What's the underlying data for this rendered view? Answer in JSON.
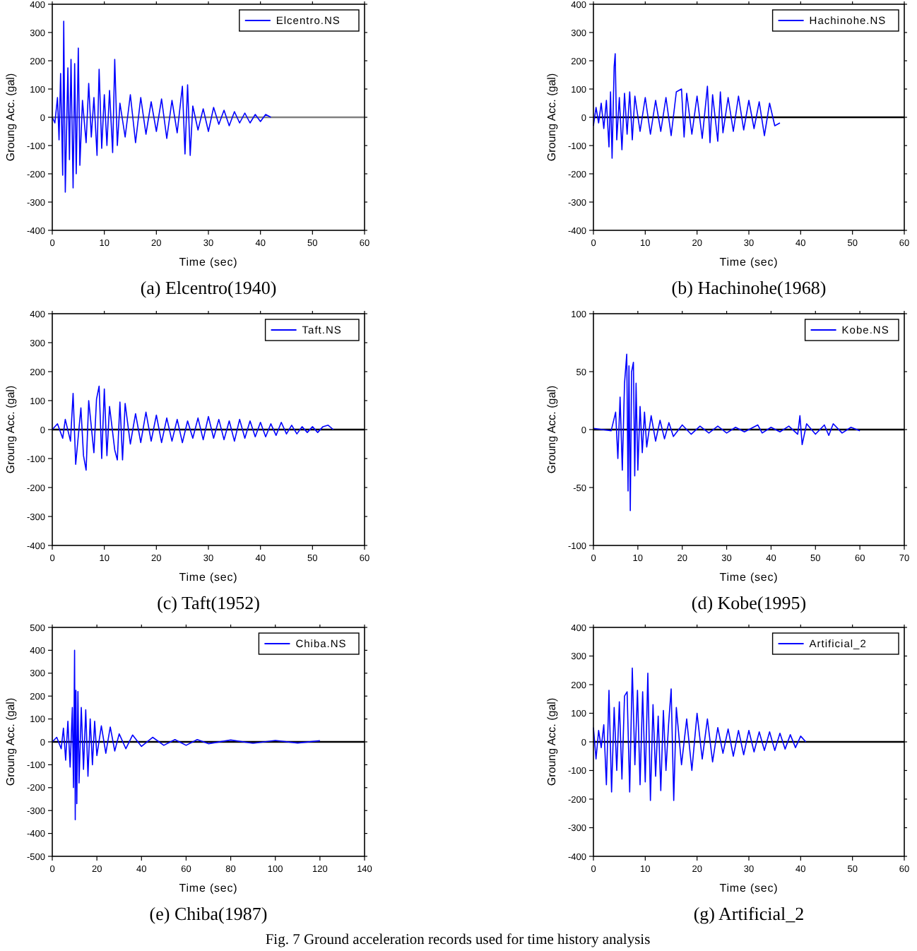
{
  "chart_data": [
    {
      "type": "line",
      "title": "(a) Elcentro(1940)",
      "xlabel": "Time (sec)",
      "ylabel": "Groung Acc. (gal)",
      "legend": "top right",
      "xlim": [
        0,
        60
      ],
      "xticks": [
        0,
        10,
        20,
        30,
        40,
        50,
        60
      ],
      "ylim": [
        -400,
        400
      ],
      "yticks": [
        -400,
        -300,
        -200,
        -100,
        0,
        100,
        200,
        300,
        400
      ],
      "ref_lines": [
        {
          "axis": "y",
          "value": 0,
          "color": "#808080"
        }
      ],
      "series": [
        {
          "name": "Elcentro.NS",
          "color": "#0000ff",
          "x": [
            0,
            0.5,
            1,
            1.3,
            1.6,
            2.0,
            2.2,
            2.5,
            3.0,
            3.3,
            3.6,
            4.0,
            4.3,
            4.6,
            5.0,
            5.3,
            5.8,
            6.5,
            7.0,
            7.5,
            8.0,
            8.6,
            9.0,
            9.5,
            10,
            10.5,
            11,
            11.6,
            12,
            12.5,
            13,
            14,
            15,
            16,
            17,
            18,
            19,
            20,
            21,
            22,
            23,
            24,
            25,
            25.5,
            26,
            26.5,
            27,
            28,
            29,
            30,
            31,
            32,
            33,
            34,
            35,
            36,
            37,
            38,
            39,
            40,
            41,
            42
          ],
          "values": [
            0,
            -20,
            70,
            -80,
            155,
            -205,
            340,
            -265,
            175,
            -150,
            205,
            -250,
            190,
            -200,
            245,
            -170,
            60,
            -90,
            120,
            -70,
            70,
            -135,
            170,
            -110,
            80,
            -100,
            95,
            -125,
            205,
            -100,
            50,
            -70,
            80,
            -90,
            70,
            -60,
            55,
            -50,
            65,
            -75,
            60,
            -55,
            110,
            -130,
            115,
            -135,
            40,
            -45,
            30,
            -50,
            35,
            -25,
            25,
            -30,
            20,
            -20,
            15,
            -20,
            10,
            -15,
            10,
            0
          ]
        }
      ]
    },
    {
      "type": "line",
      "title": "(b) Hachinohe(1968)",
      "xlabel": "Time (sec)",
      "ylabel": "Groung Acc. (gal)",
      "legend": "top right",
      "xlim": [
        0,
        60
      ],
      "xticks": [
        0,
        10,
        20,
        30,
        40,
        50,
        60
      ],
      "ylim": [
        -400,
        400
      ],
      "yticks": [
        -400,
        -300,
        -200,
        -100,
        0,
        100,
        200,
        300,
        400
      ],
      "ref_lines": [
        {
          "axis": "y",
          "value": 0,
          "color": "#000000"
        }
      ],
      "series": [
        {
          "name": "Hachinohe.NS",
          "color": "#0000ff",
          "x": [
            0,
            0.5,
            1,
            1.5,
            2,
            2.5,
            3,
            3.3,
            3.6,
            4.0,
            4.2,
            4.5,
            5,
            5.5,
            6,
            6.5,
            7,
            7.5,
            8,
            9,
            10,
            11,
            12,
            13,
            14,
            15,
            16,
            17,
            17.5,
            18,
            19,
            20,
            21,
            22,
            22.5,
            23,
            24,
            24.5,
            25,
            26,
            27,
            28,
            29,
            30,
            31,
            32,
            33,
            34,
            35,
            36
          ],
          "values": [
            -30,
            35,
            -20,
            50,
            -40,
            60,
            -105,
            90,
            -145,
            180,
            225,
            -80,
            70,
            -115,
            85,
            -60,
            90,
            -80,
            75,
            -50,
            70,
            -60,
            60,
            -50,
            70,
            -65,
            90,
            100,
            -70,
            85,
            -60,
            75,
            -75,
            110,
            -90,
            80,
            -85,
            90,
            -55,
            70,
            -50,
            75,
            -45,
            60,
            -40,
            55,
            -65,
            50,
            -30,
            -20
          ]
        }
      ]
    },
    {
      "type": "line",
      "title": "(c) Taft(1952)",
      "xlabel": "Time (sec)",
      "ylabel": "Groung Acc. (gal)",
      "legend": "top right",
      "xlim": [
        0,
        60
      ],
      "xticks": [
        0,
        10,
        20,
        30,
        40,
        50,
        60
      ],
      "ylim": [
        -400,
        400
      ],
      "yticks": [
        -400,
        -300,
        -200,
        -100,
        0,
        100,
        200,
        300,
        400
      ],
      "ref_lines": [
        {
          "axis": "y",
          "value": 0,
          "color": "#000000"
        }
      ],
      "series": [
        {
          "name": "Taft.NS",
          "color": "#0000ff",
          "x": [
            0,
            1,
            2,
            2.5,
            3.5,
            4,
            4.5,
            5.5,
            6,
            6.5,
            7,
            8,
            8.5,
            9,
            9.5,
            10,
            10.5,
            11,
            12,
            12.5,
            13,
            13.5,
            14,
            15,
            16,
            17,
            18,
            19,
            20,
            21,
            22,
            23,
            24,
            25,
            26,
            27,
            28,
            29,
            30,
            31,
            32,
            33,
            34,
            35,
            36,
            37,
            38,
            39,
            40,
            41,
            42,
            43,
            44,
            45,
            46,
            47,
            48,
            49,
            50,
            51,
            52,
            53,
            54
          ],
          "values": [
            0,
            20,
            -30,
            35,
            -40,
            125,
            -120,
            75,
            -90,
            -140,
            100,
            -80,
            105,
            150,
            -100,
            140,
            -90,
            80,
            -70,
            -105,
            95,
            -105,
            90,
            -50,
            55,
            -45,
            60,
            -40,
            50,
            -45,
            40,
            -40,
            35,
            -45,
            30,
            -30,
            40,
            -35,
            45,
            -30,
            35,
            -35,
            30,
            -40,
            35,
            -30,
            30,
            -25,
            25,
            -25,
            20,
            -20,
            25,
            -15,
            15,
            -15,
            10,
            -10,
            10,
            -10,
            10,
            15,
            0
          ]
        }
      ]
    },
    {
      "type": "line",
      "title": "(d) Kobe(1995)",
      "xlabel": "Time (sec)",
      "ylabel": "Groung Acc. (gal)",
      "legend": "top right",
      "xlim": [
        0,
        70
      ],
      "xticks": [
        0,
        10,
        20,
        30,
        40,
        50,
        60,
        70
      ],
      "ylim": [
        -100,
        100
      ],
      "yticks": [
        -100,
        -50,
        0,
        50,
        100
      ],
      "ref_lines": [
        {
          "axis": "y",
          "value": 0,
          "color": "#000000"
        }
      ],
      "series": [
        {
          "name": "Kobe.NS",
          "color": "#0000ff",
          "x": [
            0,
            2,
            4,
            5,
            5.5,
            6,
            6.5,
            7,
            7.5,
            7.8,
            8,
            8.3,
            8.6,
            9,
            9.3,
            9.6,
            10,
            10.5,
            11,
            11.5,
            12,
            13,
            14,
            15,
            16,
            17,
            18,
            20,
            22,
            24,
            26,
            28,
            30,
            32,
            34,
            36,
            37,
            38,
            40,
            42,
            44,
            46,
            46.5,
            47,
            48,
            50,
            52,
            53,
            54,
            56,
            58,
            60
          ],
          "values": [
            1,
            0,
            -1,
            15,
            -25,
            28,
            -35,
            40,
            65,
            -53,
            55,
            -70,
            50,
            58,
            -40,
            40,
            -35,
            20,
            -20,
            15,
            -15,
            12,
            -10,
            8,
            -8,
            6,
            -6,
            4,
            -4,
            3,
            -3,
            3,
            -3,
            2,
            -2,
            2,
            4,
            -3,
            2,
            -2,
            3,
            -4,
            12,
            -13,
            5,
            -4,
            4,
            -5,
            5,
            -3,
            2,
            -1
          ]
        }
      ]
    },
    {
      "type": "line",
      "title": "(e) Chiba(1987)",
      "xlabel": "Time (sec)",
      "ylabel": "Groung Acc. (gal)",
      "legend": "top right",
      "xlim": [
        0,
        140
      ],
      "xticks": [
        0,
        20,
        40,
        60,
        80,
        100,
        120,
        140
      ],
      "ylim": [
        -500,
        500
      ],
      "yticks": [
        -500,
        -400,
        -300,
        -200,
        -100,
        0,
        100,
        200,
        300,
        400,
        500
      ],
      "ref_lines": [
        {
          "axis": "y",
          "value": 0,
          "color": "#000000"
        }
      ],
      "series": [
        {
          "name": "Chiba.NS",
          "color": "#0000ff",
          "x": [
            0,
            2,
            4,
            5,
            6,
            7,
            8,
            9,
            9.5,
            10,
            10.3,
            10.6,
            11,
            11.5,
            12,
            13,
            14,
            15,
            16,
            17,
            18,
            19,
            20,
            22,
            24,
            26,
            28,
            30,
            33,
            36,
            40,
            45,
            50,
            55,
            60,
            65,
            70,
            80,
            90,
            100,
            110,
            120
          ],
          "values": [
            0,
            20,
            -30,
            60,
            -80,
            90,
            -110,
            150,
            -200,
            400,
            -340,
            225,
            -270,
            220,
            -180,
            150,
            -120,
            140,
            -150,
            100,
            -100,
            90,
            -60,
            70,
            -50,
            65,
            -40,
            35,
            -30,
            30,
            -20,
            20,
            -15,
            10,
            -15,
            10,
            -8,
            8,
            -6,
            6,
            -5,
            5
          ]
        }
      ]
    },
    {
      "type": "line",
      "title": "(g) Artificial_2",
      "xlabel": "Time (sec)",
      "ylabel": "Groung Acc. (gal)",
      "legend": "top right",
      "xlim": [
        0,
        60
      ],
      "xticks": [
        0,
        10,
        20,
        30,
        40,
        50,
        60
      ],
      "ylim": [
        -400,
        400
      ],
      "yticks": [
        -400,
        -300,
        -200,
        -100,
        0,
        100,
        200,
        300,
        400
      ],
      "ref_lines": [
        {
          "axis": "y",
          "value": 0,
          "color": "#000000"
        }
      ],
      "annotations": [
        "Fig. 7 Ground acceleration records used for time history analysis"
      ],
      "series": [
        {
          "name": "Artificial_2",
          "color": "#0000ff",
          "x": [
            0,
            0.5,
            1,
            1.5,
            2,
            2.5,
            3,
            3.5,
            4,
            4.5,
            5,
            5.5,
            6,
            6.5,
            7,
            7.5,
            8,
            8.5,
            9,
            9.5,
            10,
            10.5,
            11,
            11.5,
            12,
            12.5,
            13,
            13.5,
            14,
            14.5,
            15,
            15.5,
            16,
            17,
            18,
            19,
            20,
            21,
            22,
            23,
            24,
            25,
            26,
            27,
            28,
            29,
            30,
            31,
            32,
            33,
            34,
            35,
            36,
            37,
            38,
            39,
            40,
            41
          ],
          "values": [
            50,
            -60,
            40,
            -20,
            60,
            -150,
            180,
            -175,
            120,
            -100,
            140,
            -130,
            160,
            175,
            -175,
            258,
            -80,
            180,
            -150,
            175,
            -140,
            240,
            -205,
            130,
            -120,
            90,
            -170,
            110,
            -100,
            60,
            185,
            -205,
            120,
            -80,
            80,
            -100,
            100,
            -60,
            80,
            -70,
            50,
            -40,
            45,
            -50,
            40,
            -45,
            40,
            -35,
            35,
            -30,
            35,
            -30,
            30,
            -25,
            25,
            -20,
            20,
            0
          ]
        }
      ]
    }
  ]
}
